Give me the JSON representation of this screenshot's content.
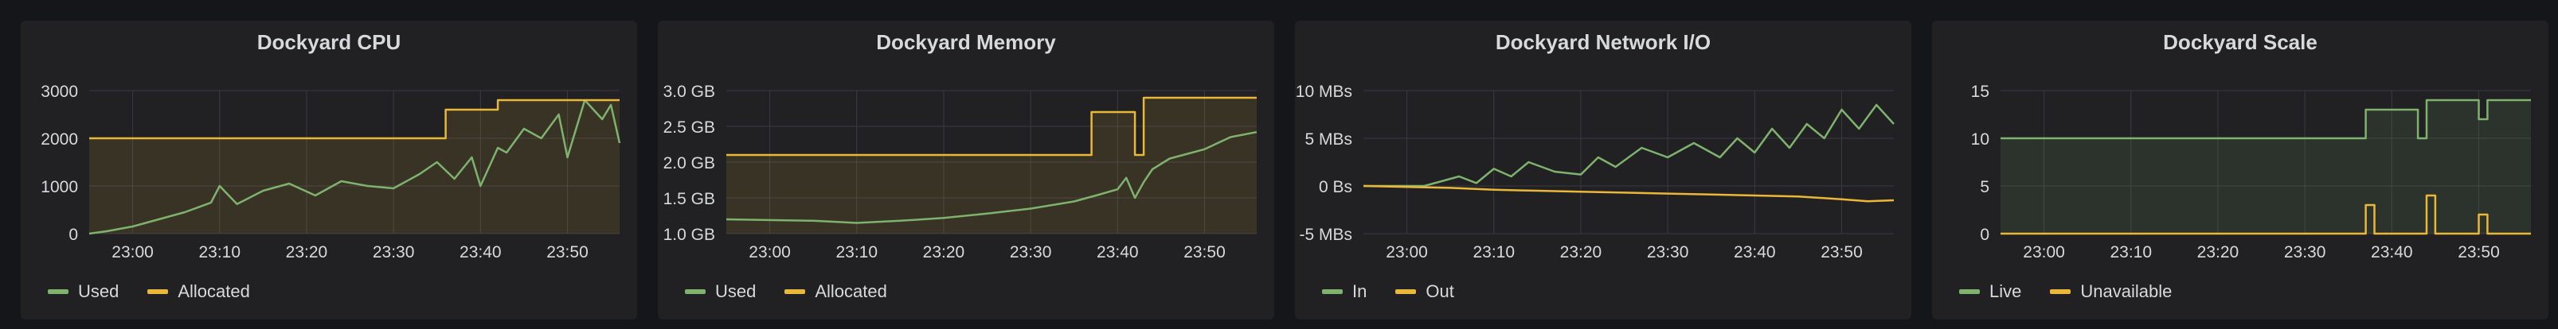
{
  "colors": {
    "green": "#7eb26d",
    "yellow": "#eab839",
    "grid": "#3a3b3f",
    "text": "#d8d9da",
    "panel": "#212124"
  },
  "panels": [
    {
      "title": "Dockyard CPU",
      "legend": [
        {
          "label": "Used",
          "color": "#7eb26d"
        },
        {
          "label": "Allocated",
          "color": "#eab839"
        }
      ],
      "chart_data": {
        "type": "line",
        "title": "Dockyard CPU",
        "x_ticks": [
          "23:00",
          "23:10",
          "23:20",
          "23:30",
          "23:40",
          "23:50"
        ],
        "xlim": [
          "22:55",
          "23:56"
        ],
        "y_ticks": [
          "0",
          "1000",
          "2000",
          "3000"
        ],
        "ylim": [
          0,
          3000
        ],
        "series": [
          {
            "name": "Used",
            "color": "#7eb26d",
            "fill": false,
            "x": [
              "22:55",
              "22:57",
              "23:00",
              "23:03",
              "23:06",
              "23:09",
              "23:10",
              "23:12",
              "23:15",
              "23:18",
              "23:21",
              "23:24",
              "23:27",
              "23:30",
              "23:33",
              "23:35",
              "23:37",
              "23:39",
              "23:40",
              "23:42",
              "23:43",
              "23:45",
              "23:47",
              "23:49",
              "23:50",
              "23:52",
              "23:54",
              "23:55",
              "23:56"
            ],
            "y": [
              0,
              50,
              150,
              300,
              450,
              650,
              1000,
              620,
              900,
              1050,
              800,
              1100,
              1000,
              950,
              1250,
              1500,
              1150,
              1600,
              1000,
              1800,
              1700,
              2200,
              2000,
              2500,
              1600,
              2800,
              2400,
              2700,
              1900
            ]
          },
          {
            "name": "Allocated",
            "color": "#eab839",
            "fill": true,
            "x": [
              "22:55",
              "23:36",
              "23:36",
              "23:42",
              "23:42",
              "23:56"
            ],
            "y": [
              2000,
              2000,
              2600,
              2600,
              2800,
              2800
            ]
          }
        ]
      }
    },
    {
      "title": "Dockyard Memory",
      "legend": [
        {
          "label": "Used",
          "color": "#7eb26d"
        },
        {
          "label": "Allocated",
          "color": "#eab839"
        }
      ],
      "chart_data": {
        "type": "line",
        "title": "Dockyard Memory",
        "x_ticks": [
          "23:00",
          "23:10",
          "23:20",
          "23:30",
          "23:40",
          "23:50"
        ],
        "xlim": [
          "22:55",
          "23:56"
        ],
        "y_ticks": [
          "1.0 GB",
          "1.5 GB",
          "2.0 GB",
          "2.5 GB",
          "3.0 GB"
        ],
        "ylim": [
          1.0,
          3.0
        ],
        "series": [
          {
            "name": "Used",
            "color": "#7eb26d",
            "fill": false,
            "x": [
              "22:55",
              "23:05",
              "23:10",
              "23:15",
              "23:20",
              "23:25",
              "23:30",
              "23:35",
              "23:38",
              "23:40",
              "23:41",
              "23:42",
              "23:43",
              "23:44",
              "23:46",
              "23:50",
              "23:53",
              "23:56"
            ],
            "y": [
              1.2,
              1.18,
              1.15,
              1.18,
              1.22,
              1.28,
              1.35,
              1.45,
              1.55,
              1.62,
              1.78,
              1.5,
              1.72,
              1.9,
              2.05,
              2.18,
              2.35,
              2.42
            ]
          },
          {
            "name": "Allocated",
            "color": "#eab839",
            "fill": true,
            "x": [
              "22:55",
              "23:37",
              "23:37",
              "23:42",
              "23:42",
              "23:43",
              "23:43",
              "23:56"
            ],
            "y": [
              2.1,
              2.1,
              2.7,
              2.7,
              2.1,
              2.1,
              2.9,
              2.9
            ]
          }
        ]
      }
    },
    {
      "title": "Dockyard Network I/O",
      "legend": [
        {
          "label": "In",
          "color": "#7eb26d"
        },
        {
          "label": "Out",
          "color": "#eab839"
        }
      ],
      "chart_data": {
        "type": "line",
        "title": "Dockyard Network I/O",
        "x_ticks": [
          "23:00",
          "23:10",
          "23:20",
          "23:30",
          "23:40",
          "23:50"
        ],
        "xlim": [
          "22:55",
          "23:56"
        ],
        "y_ticks": [
          "-5 MBs",
          "0 Bs",
          "5 MBs",
          "10 MBs"
        ],
        "ylim": [
          -5,
          10
        ],
        "series": [
          {
            "name": "In",
            "color": "#7eb26d",
            "fill": false,
            "x": [
              "22:55",
              "23:02",
              "23:04",
              "23:06",
              "23:08",
              "23:10",
              "23:12",
              "23:14",
              "23:17",
              "23:20",
              "23:22",
              "23:24",
              "23:27",
              "23:30",
              "23:33",
              "23:36",
              "23:38",
              "23:40",
              "23:42",
              "23:44",
              "23:46",
              "23:48",
              "23:50",
              "23:52",
              "23:54",
              "23:56"
            ],
            "y": [
              0,
              0,
              0.5,
              1.0,
              0.3,
              1.8,
              1.0,
              2.5,
              1.5,
              1.2,
              3.0,
              2.0,
              4.0,
              3.0,
              4.5,
              3.0,
              5.0,
              3.5,
              6.0,
              4.0,
              6.5,
              5.0,
              8.0,
              6.0,
              8.5,
              6.5
            ]
          },
          {
            "name": "Out",
            "color": "#eab839",
            "fill": false,
            "x": [
              "22:55",
              "23:05",
              "23:10",
              "23:15",
              "23:20",
              "23:25",
              "23:30",
              "23:35",
              "23:40",
              "23:45",
              "23:50",
              "23:53",
              "23:56"
            ],
            "y": [
              0,
              -0.2,
              -0.4,
              -0.5,
              -0.6,
              -0.7,
              -0.8,
              -0.9,
              -1.0,
              -1.1,
              -1.4,
              -1.6,
              -1.5
            ]
          }
        ]
      }
    },
    {
      "title": "Dockyard Scale",
      "legend": [
        {
          "label": "Live",
          "color": "#7eb26d"
        },
        {
          "label": "Unavailable",
          "color": "#eab839"
        }
      ],
      "chart_data": {
        "type": "line",
        "title": "Dockyard Scale",
        "x_ticks": [
          "23:00",
          "23:10",
          "23:20",
          "23:30",
          "23:40",
          "23:50"
        ],
        "xlim": [
          "22:55",
          "23:56"
        ],
        "y_ticks": [
          "0",
          "5",
          "10",
          "15"
        ],
        "ylim": [
          0,
          15
        ],
        "series": [
          {
            "name": "Live",
            "color": "#7eb26d",
            "fill": true,
            "x": [
              "22:55",
              "23:37",
              "23:37",
              "23:43",
              "23:43",
              "23:44",
              "23:44",
              "23:50",
              "23:50",
              "23:51",
              "23:51",
              "23:56"
            ],
            "y": [
              10,
              10,
              13,
              13,
              10,
              10,
              14,
              14,
              12,
              12,
              14,
              14
            ]
          },
          {
            "name": "Unavailable",
            "color": "#eab839",
            "fill": false,
            "x": [
              "22:55",
              "23:37",
              "23:37",
              "23:38",
              "23:38",
              "23:44",
              "23:44",
              "23:45",
              "23:45",
              "23:50",
              "23:50",
              "23:51",
              "23:51",
              "23:56"
            ],
            "y": [
              0,
              0,
              3,
              3,
              0,
              0,
              4,
              4,
              0,
              0,
              2,
              2,
              0,
              0
            ]
          }
        ]
      }
    }
  ]
}
